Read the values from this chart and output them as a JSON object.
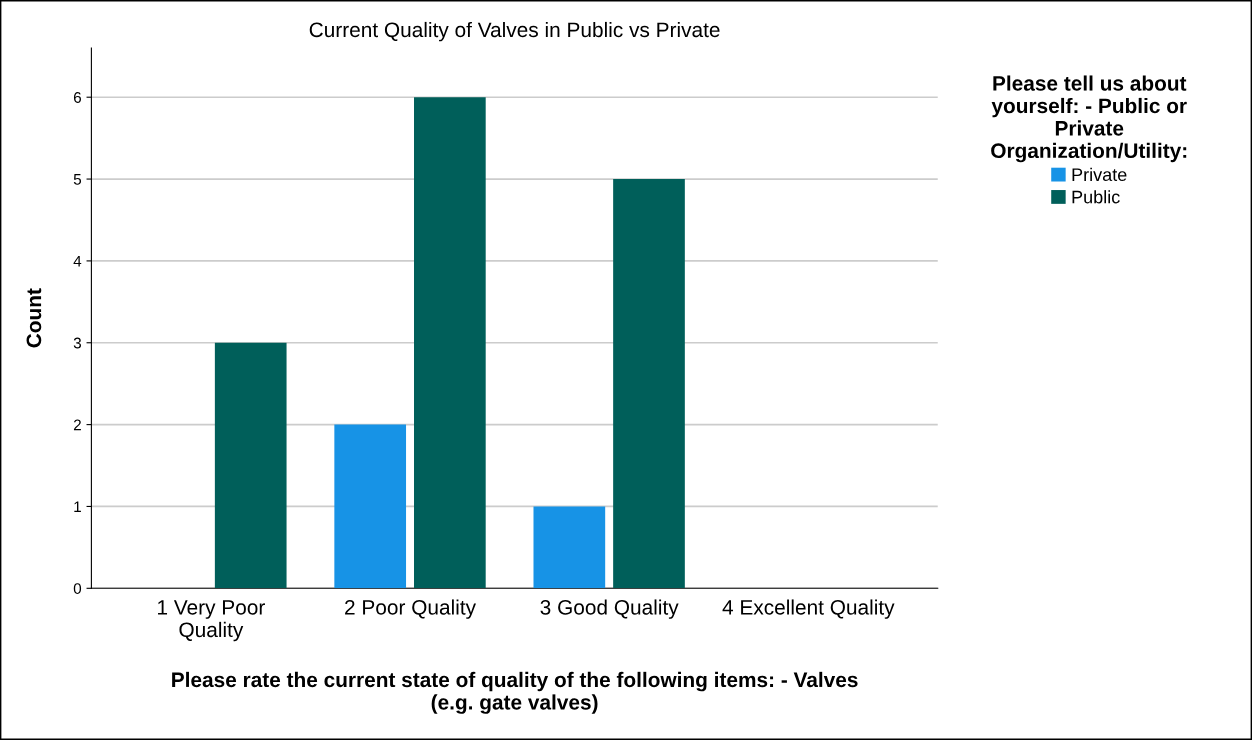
{
  "chart_data": {
    "type": "bar",
    "title": "Current Quality of Valves in Public vs Private",
    "xlabel": "Please rate the current state of quality of the following items: - Valves\n(e.g. gate valves)",
    "ylabel": "Count",
    "legend_title": "Please tell us about\nyourself: - Public or\nPrivate\nOrganization/Utility:",
    "categories": [
      "1 Very Poor\nQuality",
      "2 Poor Quality",
      "3 Good Quality",
      "4 Excellent Quality"
    ],
    "series": [
      {
        "name": "Private",
        "color": "#1793e6",
        "values": [
          0,
          2,
          1,
          0
        ]
      },
      {
        "name": "Public",
        "color": "#005f5a",
        "values": [
          3,
          6,
          5,
          0
        ]
      }
    ],
    "ylim": [
      0,
      6.6
    ],
    "yticks": [
      0,
      1,
      2,
      3,
      4,
      5,
      6
    ],
    "grid": "y",
    "legend": "top right"
  }
}
